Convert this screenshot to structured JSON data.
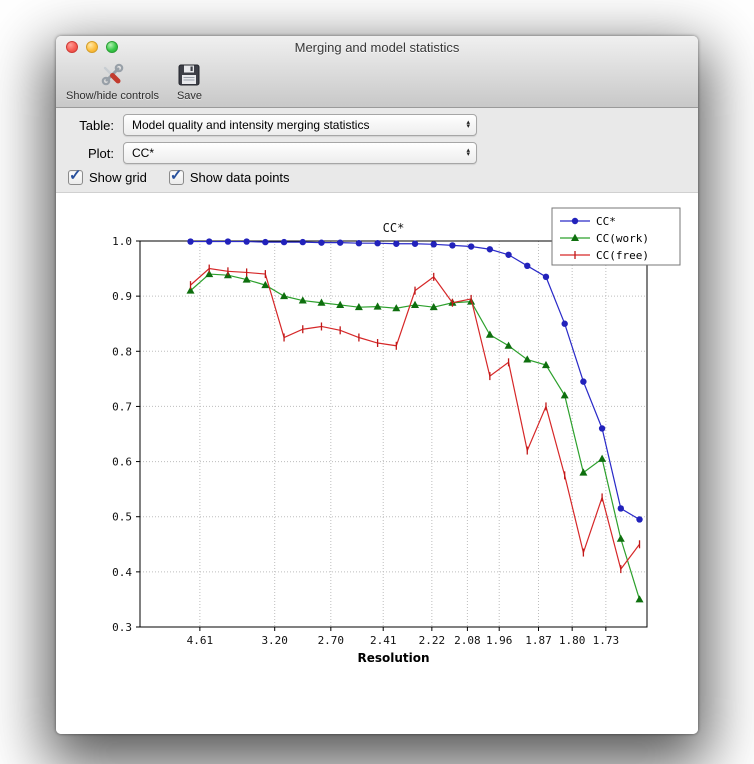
{
  "window": {
    "title": "Merging and model statistics"
  },
  "toolbar": {
    "show_hide_label": "Show/hide controls",
    "save_label": "Save"
  },
  "controls": {
    "table_label": "Table:",
    "table_value": "Model quality and intensity merging statistics",
    "plot_label": "Plot:",
    "plot_value": "CC*",
    "show_grid": {
      "label": "Show grid",
      "checked": true
    },
    "show_data_points": {
      "label": "Show data points",
      "checked": true
    }
  },
  "icons": {
    "arrow_up": "▴",
    "arrow_down": "▾",
    "checkmark": "✓"
  },
  "chart_data": {
    "type": "line",
    "title": "CC*",
    "xlabel": "Resolution",
    "ylim": [
      0.3,
      1.0
    ],
    "yticks": [
      0.3,
      0.4,
      0.5,
      0.6,
      0.7,
      0.8,
      0.9,
      1.0
    ],
    "xlim": [
      -2.7,
      24.4
    ],
    "grid": true,
    "legend_position": "top-right",
    "x_ticks": [
      {
        "label": "4.61",
        "pos": 0.5
      },
      {
        "label": "3.20",
        "pos": 4.5
      },
      {
        "label": "2.70",
        "pos": 7.5
      },
      {
        "label": "2.41",
        "pos": 10.3
      },
      {
        "label": "2.22",
        "pos": 12.9
      },
      {
        "label": "2.08",
        "pos": 14.8
      },
      {
        "label": "1.96",
        "pos": 16.5
      },
      {
        "label": "1.87",
        "pos": 18.6
      },
      {
        "label": "1.80",
        "pos": 20.4
      },
      {
        "label": "1.73",
        "pos": 22.2
      }
    ],
    "series": [
      {
        "name": "CC*",
        "color": "#2a2ac8",
        "marker_color": "#2222bb",
        "marker": "circle",
        "values": [
          0.999,
          0.999,
          0.999,
          0.999,
          0.998,
          0.998,
          0.998,
          0.997,
          0.997,
          0.996,
          0.996,
          0.995,
          0.995,
          0.994,
          0.992,
          0.99,
          0.985,
          0.975,
          0.955,
          0.935,
          0.85,
          0.745,
          0.66,
          0.515,
          0.495
        ]
      },
      {
        "name": "CC(work)",
        "color": "#2ca02c",
        "marker_color": "#0e6f0e",
        "marker": "triangle",
        "values": [
          0.91,
          0.94,
          0.938,
          0.93,
          0.92,
          0.9,
          0.892,
          0.888,
          0.884,
          0.88,
          0.881,
          0.878,
          0.884,
          0.88,
          0.888,
          0.89,
          0.83,
          0.81,
          0.785,
          0.775,
          0.72,
          0.58,
          0.605,
          0.46,
          0.35
        ]
      },
      {
        "name": "CC(free)",
        "color": "#d62728",
        "marker_color": "#c01818",
        "marker": "vline",
        "values": [
          0.92,
          0.95,
          0.945,
          0.943,
          0.94,
          0.825,
          0.84,
          0.845,
          0.838,
          0.825,
          0.815,
          0.81,
          0.91,
          0.935,
          0.888,
          0.895,
          0.755,
          0.78,
          0.62,
          0.7,
          0.575,
          0.435,
          0.535,
          0.405,
          0.45
        ]
      }
    ]
  }
}
